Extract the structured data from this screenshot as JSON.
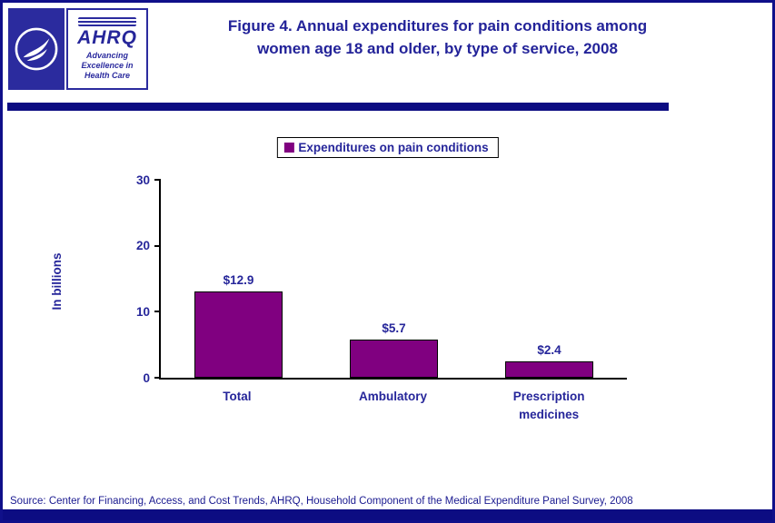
{
  "header": {
    "title_lines": [
      "Figure 4. Annual expenditures for pain conditions among",
      "women age 18 and older, by type of service, 2008"
    ],
    "ahrq_logo": {
      "acronym": "AHRQ",
      "tagline_lines": [
        "Advancing",
        "Excellence in",
        "Health Care"
      ]
    }
  },
  "legend": {
    "label": "Expenditures on pain conditions"
  },
  "chart_data": {
    "type": "bar",
    "title": "Figure 4. Annual expenditures for pain conditions among women age 18 and older, by type of service, 2008",
    "categories": [
      "Total",
      "Ambulatory",
      "Prescription medicines"
    ],
    "values": [
      12.9,
      5.7,
      2.4
    ],
    "data_labels": [
      "$12.9",
      "$5.7",
      "$2.4"
    ],
    "ylabel": "In billions",
    "xlabel": "",
    "ylim": [
      0,
      30
    ],
    "yticks": [
      0,
      10,
      20,
      30
    ],
    "legend": [
      "Expenditures on pain conditions"
    ],
    "legend_position": "top-center",
    "grid": false,
    "bar_color": "#800080"
  },
  "source": "Source: Center for Financing, Access, and Cost Trends, AHRQ, Household Component of the Medical Expenditure Panel Survey,  2008"
}
